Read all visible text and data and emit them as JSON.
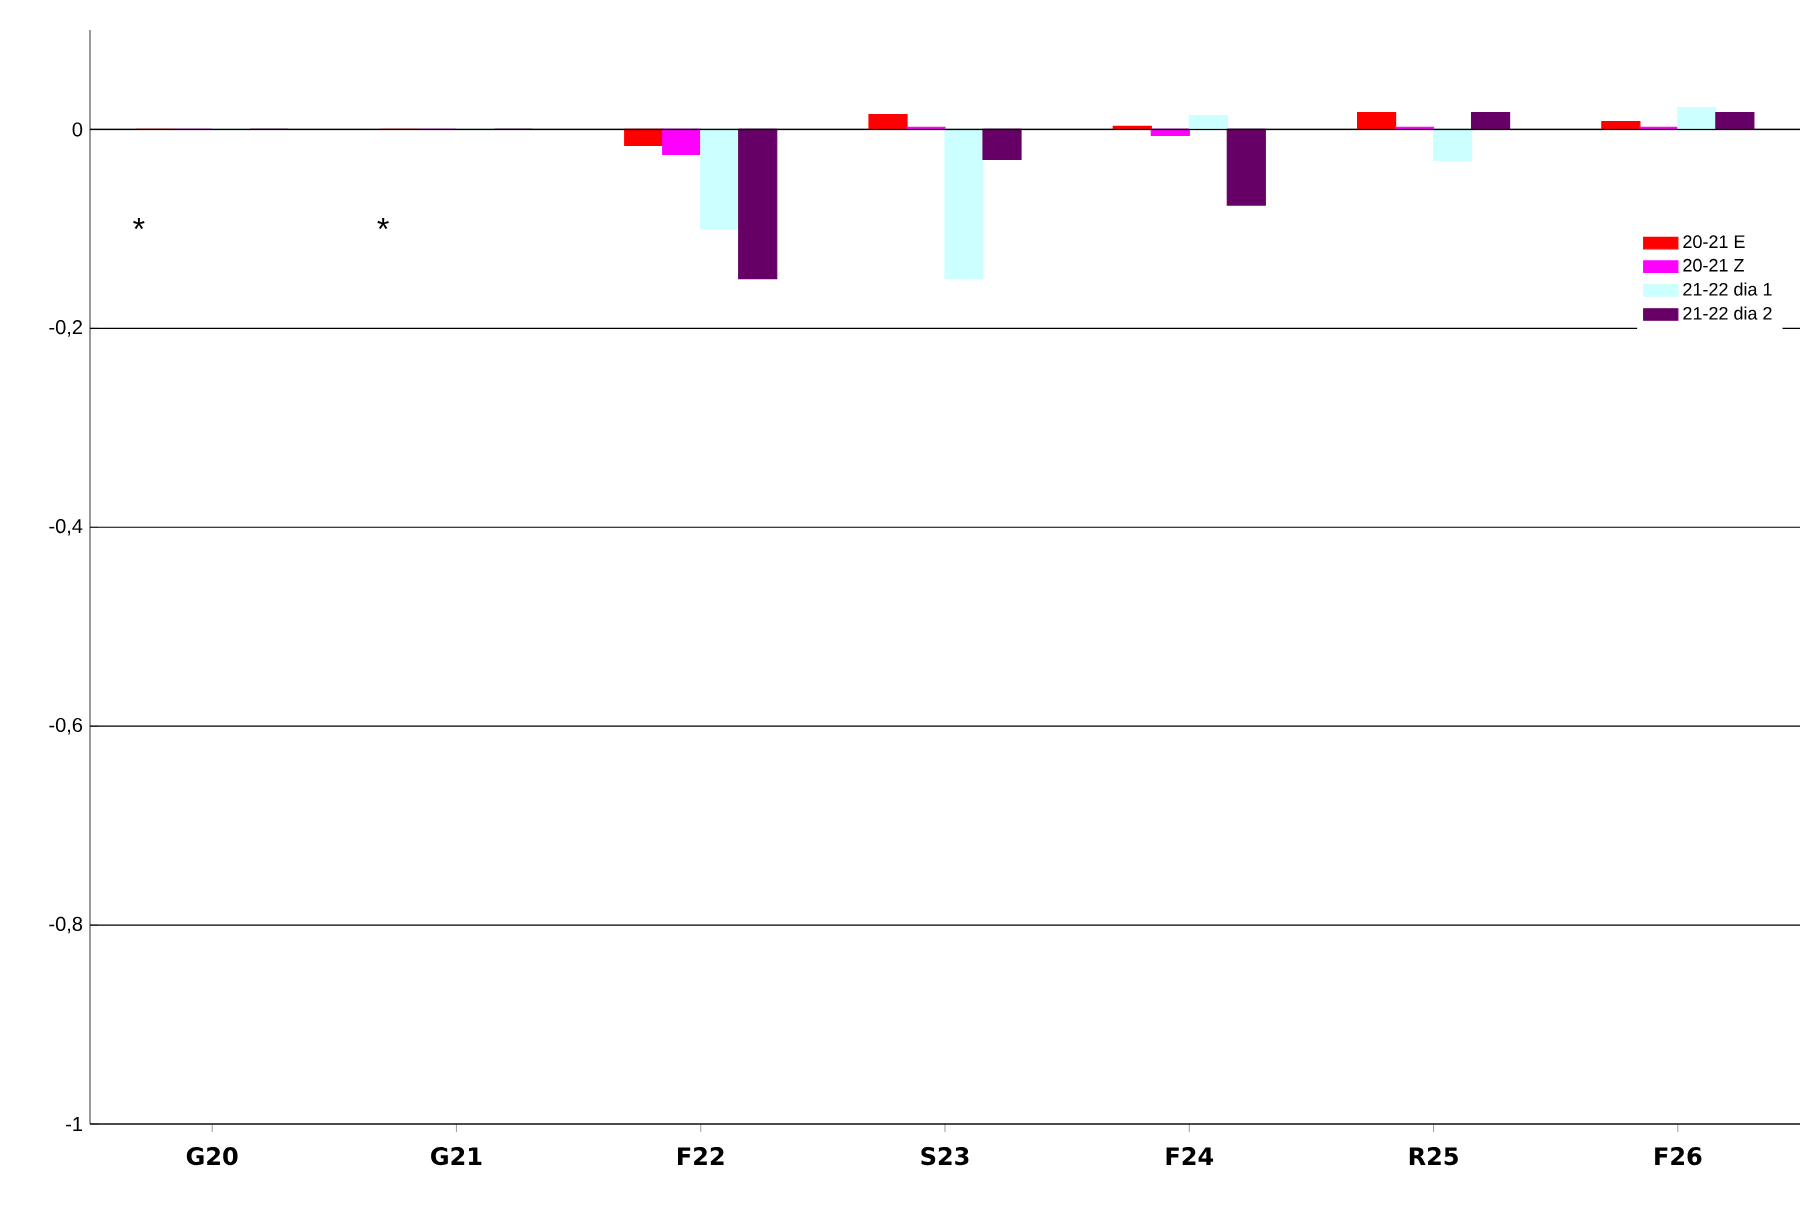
{
  "chart_data": {
    "type": "bar",
    "categories": [
      "G20",
      "G21",
      "F22",
      "S23",
      "F24",
      "R25",
      "F26"
    ],
    "series": [
      {
        "name": "20-21 E",
        "color": "#ff0000",
        "values": [
          0,
          0,
          -0.016,
          0.015,
          0.003,
          0.017,
          0.008
        ]
      },
      {
        "name": "20-21 Z",
        "color": "#ff00ff",
        "values": [
          0,
          0,
          -0.025,
          0.002,
          -0.006,
          0.002,
          0.002
        ]
      },
      {
        "name": "21-22 dia 1",
        "color": "#ccffff",
        "values": [
          0,
          0,
          -0.1,
          -0.15,
          0.014,
          -0.031,
          0.022
        ]
      },
      {
        "name": "21-22 dia 2",
        "color": "#660066",
        "values": [
          0,
          0,
          -0.15,
          -0.03,
          -0.076,
          0.017,
          0.017
        ]
      }
    ],
    "ylim": [
      -1,
      0.1
    ],
    "yticks": [
      {
        "value": -1,
        "label": "-1"
      },
      {
        "value": -0.8,
        "label": "-0,8"
      },
      {
        "value": -0.6,
        "label": "-0,6"
      },
      {
        "value": -0.4,
        "label": "-0,4"
      },
      {
        "value": -0.2,
        "label": "-0,2"
      },
      {
        "value": 0,
        "label": "0"
      }
    ],
    "annotations": [
      "*",
      "*"
    ],
    "grid": "y",
    "legend": "right"
  }
}
